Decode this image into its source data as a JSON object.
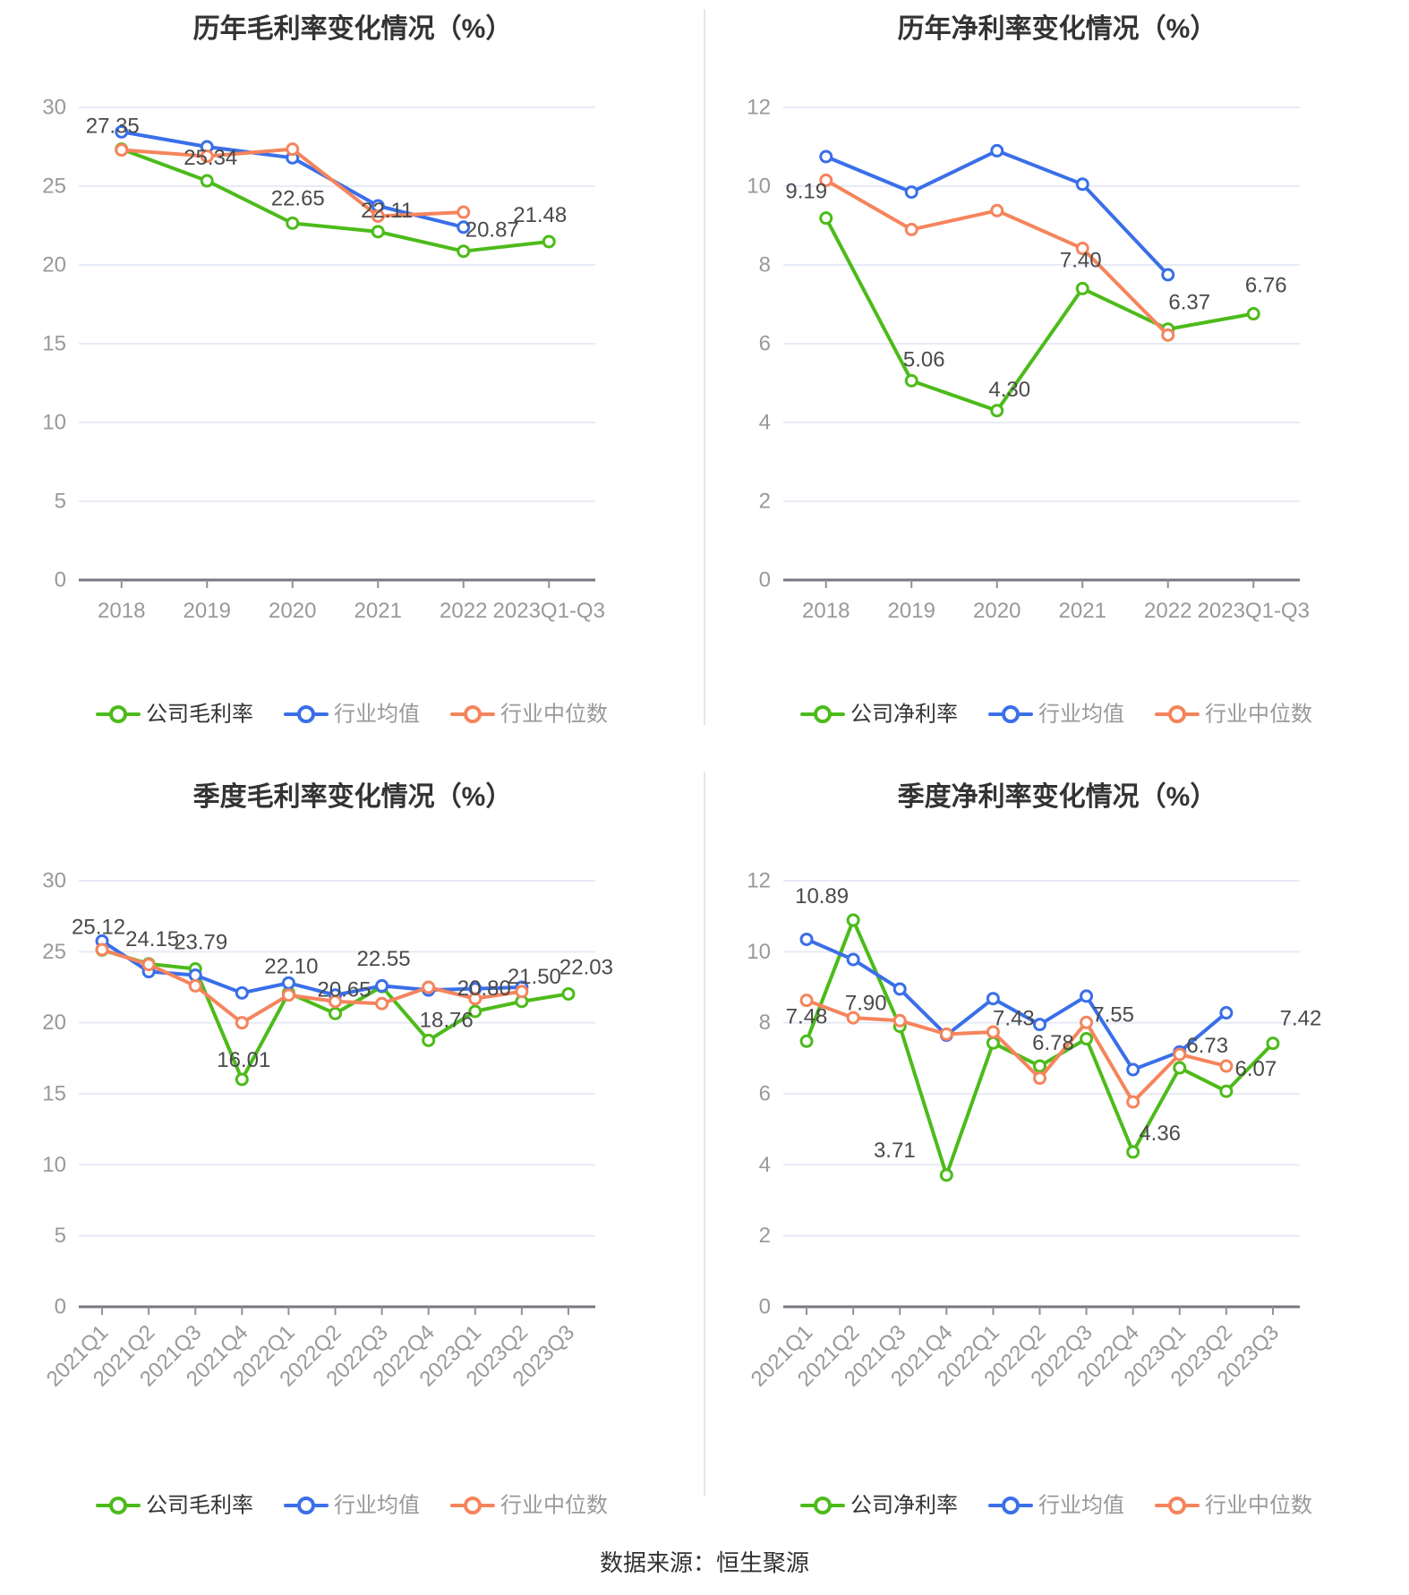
{
  "footer": {
    "source_text": "数据来源：恒生聚源"
  },
  "colors": {
    "company": "#4cbb1a",
    "industry_avg": "#3a6fe8",
    "industry_median": "#f5845c",
    "grid": "#e7ebf6",
    "axis": "#75787e",
    "tick_label": "#999999",
    "data_label": "#4a4a4a",
    "title": "#333333",
    "legend_active": "#333333",
    "legend_muted": "#999999",
    "divider": "#e6e6e6",
    "marker_fill": "#ffffff"
  },
  "chart_data": [
    {
      "type": "line",
      "title": "历年毛利率变化情况（%）",
      "categories": [
        "2018",
        "2019",
        "2020",
        "2021",
        "2022",
        "2023Q1-Q3"
      ],
      "ylim": [
        0,
        30
      ],
      "ytick_step": 5,
      "x_label_rotate": 0,
      "grid": true,
      "legend_position": "bottom",
      "series": [
        {
          "name": "公司毛利率",
          "color_key": "company",
          "show_labels": true,
          "values": [
            27.35,
            25.34,
            22.65,
            22.11,
            20.87,
            21.48
          ],
          "label_offsets": [
            [
              -10,
              -18
            ],
            [
              4,
              -18
            ],
            [
              6,
              -20
            ],
            [
              10,
              -16
            ],
            [
              32,
              -16
            ],
            [
              -10,
              -22
            ]
          ]
        },
        {
          "name": "行业均值",
          "color_key": "industry_avg",
          "show_labels": false,
          "values": [
            28.45,
            27.5,
            26.8,
            23.75,
            22.4,
            null
          ]
        },
        {
          "name": "行业中位数",
          "color_key": "industry_median",
          "show_labels": false,
          "values": [
            27.3,
            26.9,
            27.35,
            23.1,
            23.35,
            null
          ]
        }
      ]
    },
    {
      "type": "line",
      "title": "历年净利率变化情况（%）",
      "categories": [
        "2018",
        "2019",
        "2020",
        "2021",
        "2022",
        "2023Q1-Q3"
      ],
      "ylim": [
        0,
        12
      ],
      "ytick_step": 2,
      "x_label_rotate": 0,
      "grid": true,
      "legend_position": "bottom",
      "series": [
        {
          "name": "公司净利率",
          "color_key": "company",
          "show_labels": true,
          "values": [
            9.19,
            5.06,
            4.3,
            7.4,
            6.37,
            6.76
          ],
          "label_offsets": [
            [
              -22,
              -22
            ],
            [
              14,
              -16
            ],
            [
              14,
              -16
            ],
            [
              -2,
              -24
            ],
            [
              24,
              -22
            ],
            [
              14,
              -24
            ]
          ]
        },
        {
          "name": "行业均值",
          "color_key": "industry_avg",
          "show_labels": false,
          "values": [
            10.75,
            9.85,
            10.9,
            10.05,
            7.75,
            null
          ]
        },
        {
          "name": "行业中位数",
          "color_key": "industry_median",
          "show_labels": false,
          "values": [
            10.15,
            8.9,
            9.38,
            8.42,
            6.22,
            null
          ]
        }
      ]
    },
    {
      "type": "line",
      "title": "季度毛利率变化情况（%）",
      "categories": [
        "2021Q1",
        "2021Q2",
        "2021Q3",
        "2021Q4",
        "2022Q1",
        "2022Q2",
        "2022Q3",
        "2022Q4",
        "2023Q1",
        "2023Q2",
        "2023Q3"
      ],
      "ylim": [
        0,
        30
      ],
      "ytick_step": 5,
      "x_label_rotate": 45,
      "grid": true,
      "legend_position": "bottom",
      "series": [
        {
          "name": "公司毛利率",
          "color_key": "company",
          "show_labels": true,
          "values": [
            25.12,
            24.15,
            23.79,
            16.01,
            22.1,
            20.65,
            22.55,
            18.76,
            20.8,
            21.5,
            22.03
          ],
          "label_offsets": [
            [
              -4,
              -18
            ],
            [
              4,
              -20
            ],
            [
              6,
              -22
            ],
            [
              2,
              -14
            ],
            [
              3,
              -22
            ],
            [
              10,
              -19
            ],
            [
              2,
              -23
            ],
            [
              20,
              -15
            ],
            [
              10,
              -18
            ],
            [
              14,
              -20
            ],
            [
              20,
              -22
            ]
          ]
        },
        {
          "name": "行业均值",
          "color_key": "industry_avg",
          "show_labels": false,
          "values": [
            25.75,
            23.6,
            23.35,
            22.1,
            22.8,
            21.95,
            22.6,
            22.3,
            22.4,
            22.5,
            null
          ]
        },
        {
          "name": "行业中位数",
          "color_key": "industry_median",
          "show_labels": false,
          "values": [
            25.15,
            24.1,
            22.6,
            20.0,
            21.95,
            21.5,
            21.35,
            22.5,
            21.7,
            22.2,
            null
          ]
        }
      ]
    },
    {
      "type": "line",
      "title": "季度净利率变化情况（%）",
      "categories": [
        "2021Q1",
        "2021Q2",
        "2021Q3",
        "2021Q4",
        "2022Q1",
        "2022Q2",
        "2022Q3",
        "2022Q4",
        "2023Q1",
        "2023Q2",
        "2023Q3"
      ],
      "ylim": [
        0,
        12
      ],
      "ytick_step": 2,
      "x_label_rotate": 45,
      "grid": true,
      "legend_position": "bottom",
      "series": [
        {
          "name": "公司净利率",
          "color_key": "company",
          "show_labels": true,
          "values": [
            7.48,
            10.89,
            7.9,
            3.71,
            7.43,
            6.78,
            7.55,
            4.36,
            6.73,
            6.07,
            7.42
          ],
          "label_offsets": [
            [
              0,
              -20
            ],
            [
              -35,
              -19
            ],
            [
              -38,
              -18
            ],
            [
              -58,
              -20
            ],
            [
              23,
              -20
            ],
            [
              15,
              -18
            ],
            [
              30,
              -19
            ],
            [
              30,
              -13
            ],
            [
              31,
              -17
            ],
            [
              33,
              -17
            ],
            [
              31,
              -20
            ]
          ]
        },
        {
          "name": "行业均值",
          "color_key": "industry_avg",
          "show_labels": false,
          "values": [
            10.35,
            9.78,
            8.95,
            7.65,
            8.68,
            7.95,
            8.75,
            6.68,
            7.18,
            8.28,
            null
          ]
        },
        {
          "name": "行业中位数",
          "color_key": "industry_median",
          "show_labels": false,
          "values": [
            8.63,
            8.14,
            8.06,
            7.68,
            7.74,
            6.44,
            8.01,
            5.77,
            7.11,
            6.78,
            null
          ]
        }
      ]
    }
  ]
}
